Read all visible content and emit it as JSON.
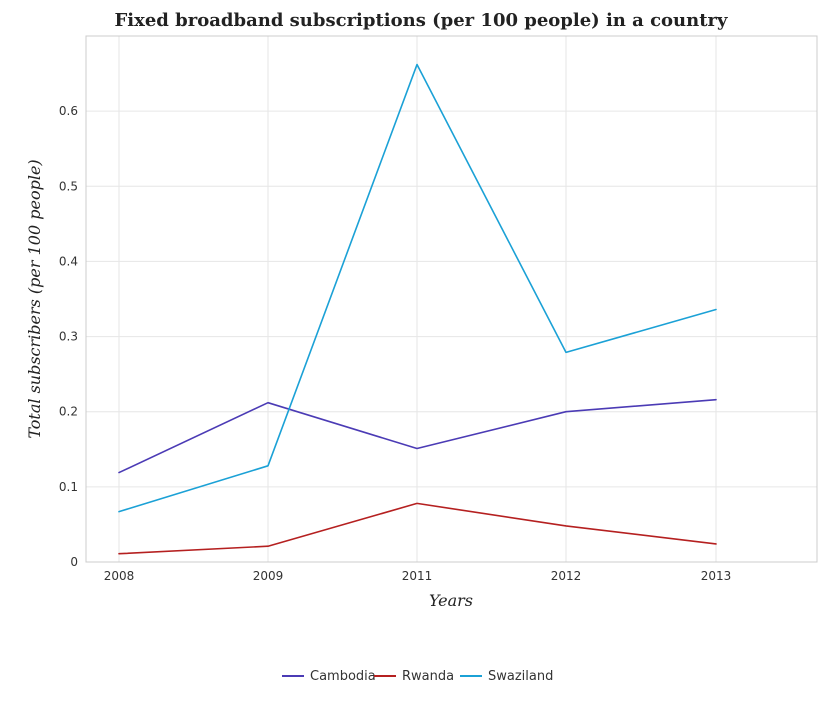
{
  "chart_data": {
    "type": "line",
    "title": "Fixed broadband subscriptions (per 100 people) in a country",
    "xlabel": "Years",
    "ylabel": "Total subscribers (per 100 people)",
    "categories": [
      "2008",
      "2009",
      "2011",
      "2012",
      "2013"
    ],
    "ylim": [
      0,
      0.7
    ],
    "yticks": [
      "0",
      "0.1",
      "0.2",
      "0.3",
      "0.4",
      "0.5",
      "0.6"
    ],
    "ytick_values": [
      0,
      0.1,
      0.2,
      0.3,
      0.4,
      0.5,
      0.6
    ],
    "grid": true,
    "legend_position": "bottom-center",
    "series": [
      {
        "name": "Cambodia",
        "color": "#4b3bb5",
        "values": [
          0.119,
          0.212,
          0.151,
          0.2,
          0.216
        ]
      },
      {
        "name": "Rwanda",
        "color": "#b52020",
        "values": [
          0.011,
          0.021,
          0.078,
          0.048,
          0.024
        ]
      },
      {
        "name": "Swaziland",
        "color": "#1ba1d6",
        "values": [
          0.067,
          0.128,
          0.662,
          0.279,
          0.336
        ]
      }
    ]
  }
}
